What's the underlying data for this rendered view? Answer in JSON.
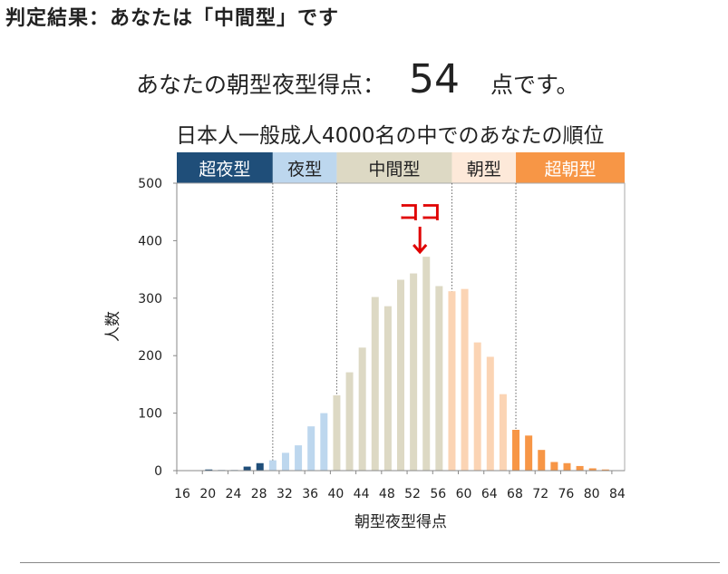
{
  "page": {
    "heading": "判定結果：あなたは「中間型」です",
    "score_prefix": "あなたの朝型夜型得点：",
    "score_value": "54",
    "score_suffix": "点です。"
  },
  "chart_data": {
    "type": "bar",
    "title": "日本人一般成人4000名の中でのあなたの順位",
    "xlabel": "朝型夜型得点",
    "ylabel": "人数",
    "ylim": [
      0,
      500
    ],
    "yticks": [
      0,
      100,
      200,
      300,
      400,
      500
    ],
    "xlim": [
      16,
      86
    ],
    "xticks": [
      16,
      20,
      24,
      28,
      32,
      36,
      40,
      44,
      48,
      52,
      56,
      60,
      64,
      68,
      72,
      76,
      80,
      84
    ],
    "bin_width": 2,
    "grid": false,
    "x": [
      16,
      18,
      20,
      22,
      24,
      26,
      28,
      30,
      32,
      34,
      36,
      38,
      40,
      42,
      44,
      46,
      48,
      50,
      52,
      54,
      56,
      58,
      60,
      62,
      64,
      66,
      68,
      70,
      72,
      74,
      76,
      78,
      80,
      82,
      84
    ],
    "values": [
      0,
      0,
      2,
      1,
      1,
      7,
      13,
      18,
      31,
      44,
      77,
      100,
      131,
      171,
      214,
      302,
      286,
      332,
      343,
      372,
      321,
      312,
      316,
      223,
      198,
      133,
      71,
      61,
      36,
      15,
      13,
      8,
      4,
      2,
      0
    ],
    "categories": [
      {
        "label": "超夜型",
        "from": 16,
        "to": 31,
        "bar_color": "#1f4e79",
        "band_color": "#1f4e79",
        "text_color": "#ffffff"
      },
      {
        "label": "夜型",
        "from": 31,
        "to": 41,
        "bar_color": "#bdd7ee",
        "band_color": "#bdd7ee",
        "text_color": "#222222"
      },
      {
        "label": "中間型",
        "from": 41,
        "to": 59,
        "bar_color": "#ddd9c4",
        "band_color": "#ddd9c4",
        "text_color": "#222222"
      },
      {
        "label": "朝型",
        "from": 59,
        "to": 69,
        "bar_color": "#fbd4b4",
        "band_color": "#fde9d9",
        "text_color": "#222222"
      },
      {
        "label": "超朝型",
        "from": 69,
        "to": 86,
        "bar_color": "#f79646",
        "band_color": "#f79646",
        "text_color": "#ffffff"
      }
    ],
    "boundaries": [
      31,
      41,
      59,
      69
    ],
    "annotation": {
      "text": "ココ",
      "x": 54,
      "color": "#e00000"
    }
  }
}
